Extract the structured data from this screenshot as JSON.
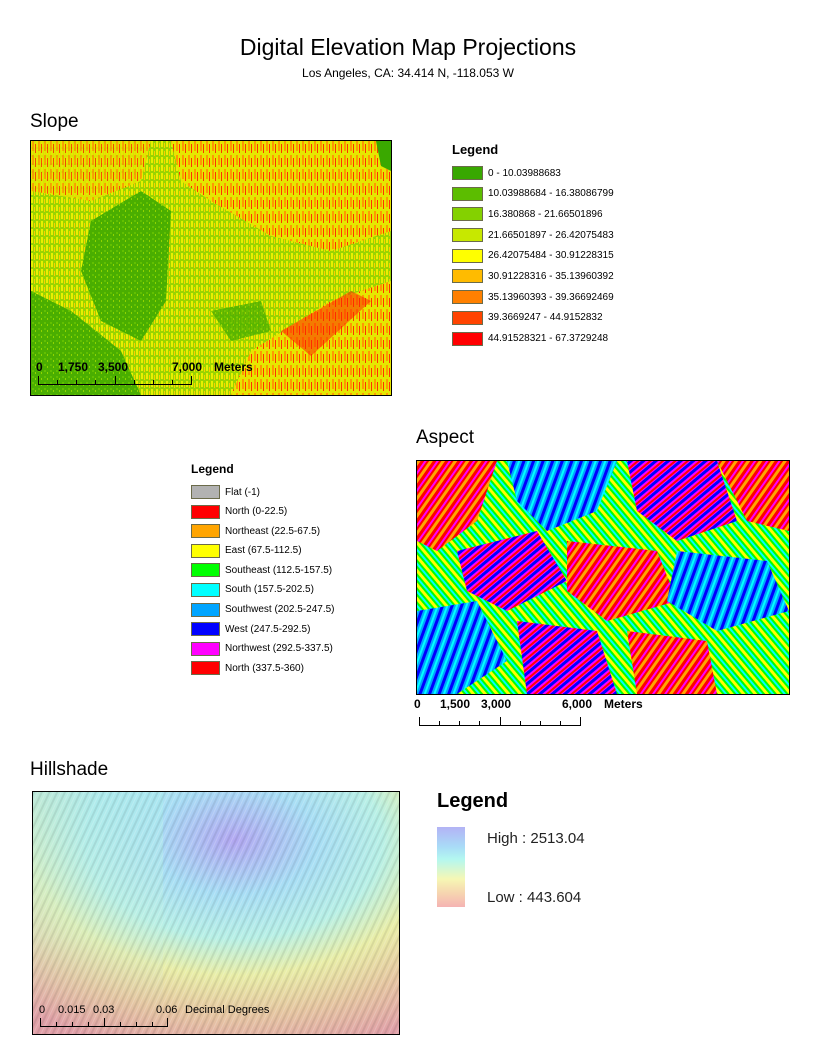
{
  "header": {
    "title": "Digital Elevation Map Projections",
    "subtitle": "Los Angeles, CA: 34.414 N, -118.053 W"
  },
  "slope": {
    "title": "Slope",
    "legend_title": "Legend",
    "legend": [
      {
        "label": "0 - 10.03988683",
        "color": "#38a800"
      },
      {
        "label": "10.03988684 - 16.38086799",
        "color": "#5cbd00"
      },
      {
        "label": "16.380868 - 21.66501896",
        "color": "#84d100"
      },
      {
        "label": "21.66501897 - 26.42075483",
        "color": "#c7e800"
      },
      {
        "label": "26.42075484 - 30.91228315",
        "color": "#ffff00"
      },
      {
        "label": "30.91228316 - 35.13960392",
        "color": "#ffbb00"
      },
      {
        "label": "35.13960393 - 39.36692469",
        "color": "#ff8000"
      },
      {
        "label": "39.3669247 - 44.9152832",
        "color": "#ff4400"
      },
      {
        "label": "44.91528321 - 67.3729248",
        "color": "#ff0000"
      }
    ],
    "scalebar": {
      "labels": [
        "0",
        "1,750",
        "3,500",
        "7,000",
        "Meters"
      ]
    }
  },
  "aspect": {
    "title": "Aspect",
    "legend_title": "Legend",
    "legend": [
      {
        "label": "Flat (-1)",
        "color": "#b2b2b2"
      },
      {
        "label": "North (0-22.5)",
        "color": "#ff0000"
      },
      {
        "label": "Northeast (22.5-67.5)",
        "color": "#ffa500"
      },
      {
        "label": "East (67.5-112.5)",
        "color": "#ffff00"
      },
      {
        "label": "Southeast (112.5-157.5)",
        "color": "#00ff00"
      },
      {
        "label": "South (157.5-202.5)",
        "color": "#00ffff"
      },
      {
        "label": "Southwest (202.5-247.5)",
        "color": "#00a5ff"
      },
      {
        "label": "West (247.5-292.5)",
        "color": "#0000ff"
      },
      {
        "label": "Northwest (292.5-337.5)",
        "color": "#ff00ff"
      },
      {
        "label": "North (337.5-360)",
        "color": "#ff0000"
      }
    ],
    "scalebar": {
      "labels": [
        "0",
        "1,500",
        "3,000",
        "6,000",
        "Meters"
      ]
    }
  },
  "hillshade": {
    "title": "Hillshade",
    "legend_title": "Legend",
    "high_label": "High : 2513.04",
    "low_label": "Low : 443.604",
    "scalebar": {
      "labels": [
        "0",
        "0.015",
        "0.03",
        "0.06",
        "Decimal Degrees"
      ]
    }
  }
}
